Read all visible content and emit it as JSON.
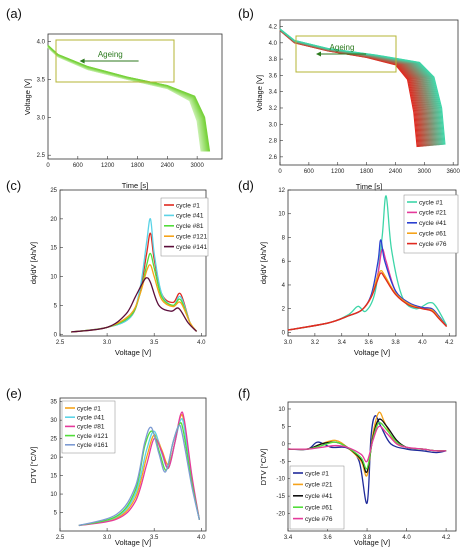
{
  "colors": {
    "green_light": "#c9f0b0",
    "green_dark": "#78d23c",
    "ageing_box": "#b5b534",
    "red": "#e0291f",
    "purple_dark": "#5b0d3a",
    "teal": "#3ed6a8",
    "blue": "#2a3fd0",
    "orange": "#f5a31a",
    "magenta": "#e53a9b",
    "lime": "#52dd3a",
    "cyan": "#5bd3e6",
    "navy": "#1f2a9a",
    "black": "#111111",
    "slate": "#7d9bd3"
  },
  "chart_data": [
    {
      "panel": "(a)",
      "type": "line",
      "xlabel": "Time [s]",
      "ylabel": "Voltage [V]",
      "xlim": [
        0,
        3500
      ],
      "ylim": [
        2.45,
        4.1
      ],
      "xticks": [
        "0",
        "600",
        "1200",
        "1800",
        "2400",
        "3000"
      ],
      "yticks": [
        "2.5",
        "3.0",
        "3.5",
        "4.0"
      ],
      "annotation": "Ageing",
      "series": [
        {
          "color_key": "green_light",
          "x": [
            0,
            200,
            800,
            1600,
            2400,
            2850,
            3000,
            3080
          ],
          "y": [
            3.92,
            3.8,
            3.63,
            3.5,
            3.38,
            3.22,
            2.95,
            2.55
          ]
        },
        {
          "color_key": "green_dark",
          "x": [
            0,
            200,
            800,
            1600,
            2400,
            2950,
            3150,
            3250
          ],
          "y": [
            3.95,
            3.83,
            3.67,
            3.53,
            3.42,
            3.28,
            3.0,
            2.55
          ]
        }
      ]
    },
    {
      "panel": "(b)",
      "type": "line",
      "xlabel": "Time [s]",
      "ylabel": "Voltage [V]",
      "xlim": [
        0,
        3700
      ],
      "ylim": [
        2.5,
        4.28
      ],
      "xticks": [
        "0",
        "600",
        "1200",
        "1800",
        "2400",
        "3000",
        "3600"
      ],
      "yticks": [
        "2.6",
        "2.8",
        "3.0",
        "3.2",
        "3.4",
        "3.6",
        "3.8",
        "4.0",
        "4.2"
      ],
      "annotation": "Ageing",
      "series": [
        {
          "color_key": "red",
          "x": [
            0,
            300,
            1000,
            1800,
            2400,
            2650,
            2780,
            2850
          ],
          "y": [
            4.15,
            4.0,
            3.9,
            3.82,
            3.73,
            3.55,
            3.15,
            2.72
          ]
        },
        {
          "color_key": "teal",
          "x": [
            0,
            300,
            1000,
            2000,
            2900,
            3200,
            3360,
            3430
          ],
          "y": [
            4.17,
            4.03,
            3.93,
            3.85,
            3.76,
            3.58,
            3.2,
            2.75
          ]
        }
      ]
    },
    {
      "panel": "(c)",
      "type": "line",
      "xlabel": "Voltage [V]",
      "ylabel": "dq/dV [Ah/V]",
      "xlim": [
        2.5,
        4.05
      ],
      "ylim": [
        -0.3,
        25
      ],
      "xticks": [
        "2.5",
        "3.0",
        "3.5",
        "4.0"
      ],
      "yticks": [
        "0",
        "5",
        "10",
        "15",
        "20",
        "25"
      ],
      "series": [
        {
          "name": "cycle #1",
          "color_key": "red",
          "x": [
            2.62,
            3.0,
            3.25,
            3.35,
            3.42,
            3.46,
            3.5,
            3.58,
            3.7,
            3.78,
            3.88,
            3.95
          ],
          "y": [
            0.4,
            1.2,
            3.0,
            7.5,
            14.0,
            17.5,
            13.0,
            7.0,
            5.5,
            7.0,
            2.0,
            0.5
          ]
        },
        {
          "name": "cycle #41",
          "color_key": "cyan",
          "x": [
            2.62,
            3.0,
            3.25,
            3.35,
            3.42,
            3.46,
            3.5,
            3.58,
            3.7,
            3.78,
            3.88,
            3.95
          ],
          "y": [
            0.4,
            1.2,
            3.0,
            8.0,
            16.0,
            20.0,
            14.0,
            7.0,
            5.0,
            6.5,
            2.0,
            0.5
          ]
        },
        {
          "name": "cycle #81",
          "color_key": "lime",
          "x": [
            2.62,
            3.0,
            3.25,
            3.35,
            3.42,
            3.46,
            3.5,
            3.58,
            3.7,
            3.78,
            3.88,
            3.95
          ],
          "y": [
            0.4,
            1.2,
            3.2,
            7.0,
            12.0,
            14.0,
            11.5,
            6.5,
            5.0,
            6.0,
            2.0,
            0.5
          ]
        },
        {
          "name": "cycle #121",
          "color_key": "orange",
          "x": [
            2.62,
            3.0,
            3.25,
            3.35,
            3.42,
            3.46,
            3.5,
            3.58,
            3.7,
            3.78,
            3.88,
            3.95
          ],
          "y": [
            0.4,
            1.2,
            3.5,
            7.0,
            11.0,
            12.0,
            10.0,
            6.0,
            4.8,
            5.5,
            2.0,
            0.5
          ]
        },
        {
          "name": "cycle #141",
          "color_key": "purple_dark",
          "x": [
            2.62,
            3.0,
            3.2,
            3.3,
            3.38,
            3.42,
            3.46,
            3.55,
            3.68,
            3.76,
            3.86,
            3.95
          ],
          "y": [
            0.4,
            1.2,
            3.5,
            6.5,
            9.0,
            9.8,
            9.0,
            5.0,
            4.0,
            4.5,
            2.0,
            0.5
          ]
        }
      ]
    },
    {
      "panel": "(d)",
      "type": "line",
      "xlabel": "Voltage [V]",
      "ylabel": "dq/dV [Ah/V]",
      "xlim": [
        3.0,
        4.25
      ],
      "ylim": [
        -0.3,
        12
      ],
      "xticks": [
        "3.0",
        "3.2",
        "3.4",
        "3.6",
        "3.8",
        "4.0",
        "4.2"
      ],
      "yticks": [
        "0",
        "2",
        "4",
        "6",
        "8",
        "10",
        "12"
      ],
      "series": [
        {
          "name": "cycle #1",
          "color_key": "teal",
          "x": [
            3.0,
            3.3,
            3.45,
            3.52,
            3.58,
            3.65,
            3.7,
            3.73,
            3.77,
            3.85,
            3.95,
            4.05,
            4.1,
            4.18
          ],
          "y": [
            0.2,
            0.8,
            1.5,
            2.2,
            1.8,
            3.5,
            8.0,
            11.5,
            7.0,
            3.0,
            2.0,
            2.5,
            2.2,
            0.6
          ]
        },
        {
          "name": "cycle #21",
          "color_key": "magenta",
          "x": [
            3.0,
            3.3,
            3.45,
            3.55,
            3.62,
            3.67,
            3.7,
            3.73,
            3.8,
            3.9,
            4.0,
            4.07,
            4.12,
            4.18
          ],
          "y": [
            0.2,
            0.8,
            1.4,
            1.9,
            3.0,
            5.0,
            7.0,
            6.0,
            3.5,
            2.5,
            2.1,
            2.0,
            1.4,
            0.5
          ]
        },
        {
          "name": "cycle #41",
          "color_key": "blue",
          "x": [
            3.0,
            3.3,
            3.45,
            3.55,
            3.62,
            3.67,
            3.69,
            3.72,
            3.8,
            3.9,
            4.0,
            4.07,
            4.12,
            4.18
          ],
          "y": [
            0.2,
            0.8,
            1.4,
            1.9,
            3.2,
            6.0,
            7.8,
            6.0,
            3.5,
            2.5,
            2.1,
            2.0,
            1.4,
            0.5
          ]
        },
        {
          "name": "cycle #61",
          "color_key": "orange",
          "x": [
            3.0,
            3.3,
            3.45,
            3.55,
            3.62,
            3.66,
            3.69,
            3.72,
            3.8,
            3.9,
            4.0,
            4.07,
            4.12,
            4.18
          ],
          "y": [
            0.2,
            0.8,
            1.4,
            1.9,
            3.0,
            4.5,
            5.2,
            4.8,
            3.3,
            2.4,
            2.0,
            1.9,
            1.3,
            0.5
          ]
        },
        {
          "name": "cycle #76",
          "color_key": "red",
          "x": [
            3.0,
            3.3,
            3.45,
            3.55,
            3.62,
            3.66,
            3.69,
            3.72,
            3.8,
            3.9,
            4.0,
            4.07,
            4.12,
            4.18
          ],
          "y": [
            0.2,
            0.8,
            1.4,
            1.9,
            3.0,
            4.2,
            5.0,
            4.6,
            3.2,
            2.3,
            2.0,
            1.8,
            1.2,
            0.5
          ]
        }
      ]
    },
    {
      "panel": "(e)",
      "type": "line",
      "xlabel": "Voltage [V]",
      "ylabel": "DTV [°C/V]",
      "xlim": [
        2.5,
        4.05
      ],
      "ylim": [
        0,
        36
      ],
      "xticks": [
        "2.5",
        "3.0",
        "3.5",
        "4.0"
      ],
      "yticks": [
        "5",
        "10",
        "15",
        "20",
        "25",
        "30",
        "35"
      ],
      "series": [
        {
          "name": "cycle #1",
          "color_key": "orange",
          "x": [
            2.7,
            3.1,
            3.3,
            3.42,
            3.5,
            3.58,
            3.65,
            3.72,
            3.78,
            3.82,
            3.9,
            3.98
          ],
          "y": [
            1.5,
            3.5,
            9.0,
            20.0,
            26.0,
            22.0,
            18.0,
            24.0,
            31.0,
            29.0,
            14.0,
            3.0
          ]
        },
        {
          "name": "cycle #41",
          "color_key": "cyan",
          "x": [
            2.7,
            3.1,
            3.3,
            3.42,
            3.5,
            3.58,
            3.65,
            3.72,
            3.78,
            3.82,
            3.9,
            3.98
          ],
          "y": [
            1.5,
            3.8,
            10.0,
            22.0,
            27.0,
            21.0,
            17.0,
            24.0,
            30.0,
            28.0,
            13.0,
            3.0
          ]
        },
        {
          "name": "cycle #81",
          "color_key": "magenta",
          "x": [
            2.7,
            3.1,
            3.3,
            3.42,
            3.5,
            3.58,
            3.65,
            3.72,
            3.78,
            3.82,
            3.9,
            3.98
          ],
          "y": [
            1.5,
            3.2,
            8.0,
            18.0,
            25.0,
            21.5,
            17.0,
            24.0,
            31.5,
            30.0,
            15.0,
            3.0
          ]
        },
        {
          "name": "cycle #121",
          "color_key": "lime",
          "x": [
            2.7,
            3.1,
            3.3,
            3.4,
            3.48,
            3.56,
            3.63,
            3.7,
            3.77,
            3.81,
            3.9,
            3.98
          ],
          "y": [
            1.5,
            4.0,
            11.0,
            23.0,
            27.0,
            21.0,
            16.5,
            24.0,
            29.0,
            27.0,
            13.0,
            3.0
          ]
        },
        {
          "name": "cycle #161",
          "color_key": "slate",
          "x": [
            2.7,
            3.1,
            3.3,
            3.4,
            3.47,
            3.55,
            3.62,
            3.7,
            3.76,
            3.8,
            3.9,
            3.98
          ],
          "y": [
            1.5,
            4.5,
            12.0,
            24.0,
            28.0,
            21.0,
            16.0,
            24.0,
            28.5,
            26.0,
            12.0,
            3.0
          ]
        }
      ]
    },
    {
      "panel": "(f)",
      "type": "line",
      "xlabel": "Voltage [V]",
      "ylabel": "DTV [°C/V]",
      "xlim": [
        3.4,
        4.25
      ],
      "ylim": [
        -25,
        12
      ],
      "xticks": [
        "3.4",
        "3.6",
        "3.8",
        "4.0",
        "4.2"
      ],
      "yticks": [
        "-20",
        "-15",
        "-10",
        "-5",
        "0",
        "5",
        "10"
      ],
      "series": [
        {
          "name": "cycle #1",
          "color_key": "navy",
          "x": [
            3.4,
            3.5,
            3.55,
            3.62,
            3.7,
            3.76,
            3.8,
            3.82,
            3.84,
            3.87,
            3.92,
            4.0,
            4.08,
            4.15,
            4.2
          ],
          "y": [
            -1.5,
            -1.5,
            0.5,
            -1.0,
            -1.2,
            -5.0,
            -17.0,
            2.0,
            8.0,
            5.0,
            0.0,
            -1.5,
            -2.0,
            -2.5,
            -2.0
          ]
        },
        {
          "name": "cycle #21",
          "color_key": "orange",
          "x": [
            3.4,
            3.5,
            3.57,
            3.64,
            3.7,
            3.77,
            3.8,
            3.83,
            3.86,
            3.89,
            3.94,
            4.0,
            4.08,
            4.15,
            4.2
          ],
          "y": [
            -1.5,
            -1.5,
            0.0,
            1.0,
            -1.0,
            -5.0,
            -9.0,
            3.0,
            9.0,
            6.0,
            0.5,
            -1.0,
            -1.5,
            -2.0,
            -2.0
          ]
        },
        {
          "name": "cycle #41",
          "color_key": "black",
          "x": [
            3.4,
            3.5,
            3.57,
            3.64,
            3.7,
            3.77,
            3.8,
            3.83,
            3.86,
            3.9,
            3.95,
            4.0,
            4.08,
            4.15,
            4.2
          ],
          "y": [
            -1.5,
            -1.5,
            0.0,
            0.5,
            -1.0,
            -4.5,
            -8.0,
            2.0,
            7.0,
            5.0,
            1.0,
            -1.0,
            -1.5,
            -2.0,
            -2.0
          ]
        },
        {
          "name": "cycle #61",
          "color_key": "lime",
          "x": [
            3.4,
            3.5,
            3.57,
            3.64,
            3.7,
            3.77,
            3.8,
            3.83,
            3.86,
            3.9,
            3.95,
            4.0,
            4.08,
            4.15,
            4.2
          ],
          "y": [
            -1.5,
            -1.5,
            -0.5,
            0.5,
            -1.0,
            -4.0,
            -7.0,
            1.5,
            6.0,
            4.0,
            0.5,
            -1.0,
            -1.5,
            -2.0,
            -2.0
          ]
        },
        {
          "name": "cycle #76",
          "color_key": "magenta",
          "x": [
            3.4,
            3.5,
            3.57,
            3.64,
            3.7,
            3.77,
            3.8,
            3.83,
            3.86,
            3.9,
            3.95,
            4.0,
            4.08,
            4.15,
            4.2
          ],
          "y": [
            -1.5,
            -1.5,
            -1.0,
            -0.5,
            -1.0,
            -3.0,
            -5.0,
            1.0,
            5.0,
            3.0,
            0.0,
            -1.0,
            -1.5,
            -2.0,
            -2.0
          ]
        }
      ]
    }
  ]
}
